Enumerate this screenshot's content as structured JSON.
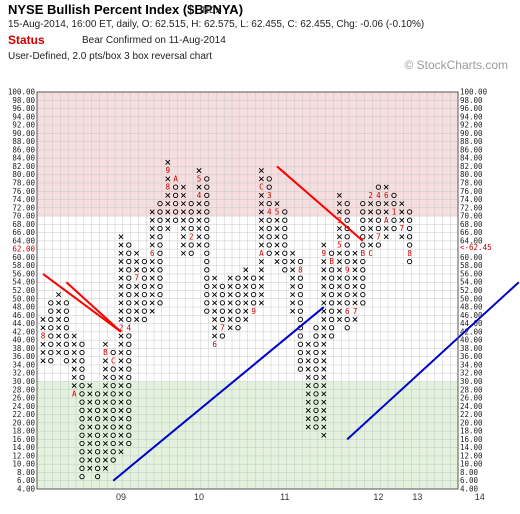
{
  "header": {
    "title": "NYSE Bullish Percent Index ($BPNYA)",
    "symbol_type": "INDX",
    "info": "15-Aug-2014, 16:00 ET, daily, O: 62.515, H: 62.575, L: 62.455, C: 62.455, Chg: -0.06 (-0.10%)",
    "status_label": "Status",
    "status_text": "Bear Confirmed on 11-Aug-2014",
    "description": "User-Defined, 2.0 pts/box 3 box reversal chart",
    "brand": "© StockCharts.com"
  },
  "colors": {
    "overbought_zone": "#f6dede",
    "oversold_zone": "#e2f2dc",
    "x_color": "#000000",
    "o_color": "#000000",
    "month_marker": "#cc0000",
    "resistance_line": "#ff0000",
    "support_line": "#0000cc",
    "current_price_label": "#cc0000"
  },
  "chart_data": {
    "type": "point-and-figure",
    "box_size": 2,
    "reversal": 3,
    "ylim": [
      4,
      100
    ],
    "y_ticks": [
      "4.00",
      "6.00",
      "8.00",
      "10.00",
      "12.00",
      "14.00",
      "16.00",
      "18.00",
      "20.00",
      "22.00",
      "24.00",
      "26.00",
      "28.00",
      "30.00",
      "32.00",
      "34.00",
      "36.00",
      "38.00",
      "40.00",
      "42.00",
      "44.00",
      "46.00",
      "48.00",
      "50.00",
      "52.00",
      "54.00",
      "56.00",
      "58.00",
      "60.00",
      "62.00",
      "64.00",
      "66.00",
      "68.00",
      "70.00",
      "72.00",
      "74.00",
      "76.00",
      "78.00",
      "80.00",
      "82.00",
      "84.00",
      "86.00",
      "88.00",
      "90.00",
      "92.00",
      "94.00",
      "96.00",
      "98.00",
      "100.00"
    ],
    "current_value_label": "62.00",
    "current_value_marker": "<-62.45",
    "zones": [
      {
        "name": "overbought",
        "from": 70,
        "to": 100
      },
      {
        "name": "oversold",
        "from": 4,
        "to": 30
      }
    ],
    "x_labels": [
      {
        "col": 10,
        "label": "09"
      },
      {
        "col": 20,
        "label": "10"
      },
      {
        "col": 31,
        "label": "11"
      },
      {
        "col": 43,
        "label": "12"
      },
      {
        "col": 48,
        "label": "13"
      },
      {
        "col": 56,
        "label": "14"
      }
    ],
    "columns": [
      {
        "type": "X",
        "low": 36,
        "high": 46,
        "marks": {
          "42": "8"
        }
      },
      {
        "type": "O",
        "low": 36,
        "high": 50
      },
      {
        "type": "X",
        "low": 38,
        "high": 52
      },
      {
        "type": "O",
        "low": 36,
        "high": 50
      },
      {
        "type": "X",
        "low": 28,
        "high": 42,
        "marks": {
          "28": "A"
        }
      },
      {
        "type": "O",
        "low": 8,
        "high": 40
      },
      {
        "type": "X",
        "low": 10,
        "high": 30
      },
      {
        "type": "O",
        "low": 8,
        "high": 28
      },
      {
        "type": "X",
        "low": 10,
        "high": 40,
        "marks": {
          "38": "B"
        }
      },
      {
        "type": "O",
        "low": 12,
        "high": 38,
        "marks": {
          "36": "C"
        }
      },
      {
        "type": "X",
        "low": 14,
        "high": 66,
        "marks": {
          "44": "2"
        }
      },
      {
        "type": "O",
        "low": 16,
        "high": 64,
        "marks": {
          "44": "4"
        }
      },
      {
        "type": "X",
        "low": 46,
        "high": 62,
        "marks": {
          "56": "7"
        }
      },
      {
        "type": "O",
        "low": 46,
        "high": 60
      },
      {
        "type": "X",
        "low": 48,
        "high": 72,
        "marks": {
          "62": "6"
        }
      },
      {
        "type": "O",
        "low": 50,
        "high": 74
      },
      {
        "type": "X",
        "low": 68,
        "high": 84,
        "marks": {
          "82": "9",
          "78": "8"
        }
      },
      {
        "type": "O",
        "low": 70,
        "high": 80,
        "marks": {
          "80": "A"
        }
      },
      {
        "type": "X",
        "low": 62,
        "high": 78
      },
      {
        "type": "O",
        "low": 62,
        "high": 74,
        "marks": {
          "66": "2"
        }
      },
      {
        "type": "X",
        "low": 64,
        "high": 82,
        "marks": {
          "80": "5",
          "76": "4"
        }
      },
      {
        "type": "O",
        "low": 48,
        "high": 80
      },
      {
        "type": "X",
        "low": 40,
        "high": 56,
        "marks": {
          "40": "6"
        }
      },
      {
        "type": "O",
        "low": 42,
        "high": 54,
        "marks": {
          "44": "7"
        }
      },
      {
        "type": "X",
        "low": 44,
        "high": 56
      },
      {
        "type": "O",
        "low": 44,
        "high": 56
      },
      {
        "type": "X",
        "low": 46,
        "high": 58
      },
      {
        "type": "O",
        "low": 48,
        "high": 56,
        "marks": {
          "48": "9"
        }
      },
      {
        "type": "X",
        "low": 50,
        "high": 82,
        "marks": {
          "62": "A",
          "78": "C"
        }
      },
      {
        "type": "O",
        "low": 62,
        "high": 80,
        "marks": {
          "76": "3",
          "72": "4"
        }
      },
      {
        "type": "X",
        "low": 60,
        "high": 74,
        "marks": {
          "72": "5"
        }
      },
      {
        "type": "O",
        "low": 58,
        "high": 72
      },
      {
        "type": "X",
        "low": 48,
        "high": 62
      },
      {
        "type": "O",
        "low": 34,
        "high": 60,
        "marks": {
          "58": "8"
        }
      },
      {
        "type": "X",
        "low": 20,
        "high": 40
      },
      {
        "type": "O",
        "low": 20,
        "high": 44
      },
      {
        "type": "X",
        "low": 18,
        "high": 64,
        "marks": {
          "62": "9"
        }
      },
      {
        "type": "O",
        "low": 42,
        "high": 62,
        "marks": {
          "60": "B"
        }
      },
      {
        "type": "X",
        "low": 46,
        "high": 76,
        "marks": {
          "64": "5",
          "70": "3"
        }
      },
      {
        "type": "O",
        "low": 44,
        "high": 74,
        "marks": {
          "48": "6",
          "58": "9"
        }
      },
      {
        "type": "X",
        "low": 46,
        "high": 62,
        "marks": {
          "48": "7"
        }
      },
      {
        "type": "O",
        "low": 50,
        "high": 74,
        "marks": {
          "62": "B"
        }
      },
      {
        "type": "X",
        "low": 62,
        "high": 76,
        "marks": {
          "76": "2",
          "62": "C"
        }
      },
      {
        "type": "O",
        "low": 64,
        "high": 78,
        "marks": {
          "76": "4",
          "66": "7"
        }
      },
      {
        "type": "X",
        "low": 66,
        "high": 78,
        "marks": {
          "76": "6",
          "70": "A"
        }
      },
      {
        "type": "O",
        "low": 68,
        "high": 76,
        "marks": {
          "72": "1"
        }
      },
      {
        "type": "X",
        "low": 66,
        "high": 74,
        "marks": {
          "68": "7"
        }
      },
      {
        "type": "O",
        "low": 60,
        "high": 72,
        "marks": {
          "62": "8"
        }
      }
    ],
    "trendlines": [
      {
        "type": "resistance",
        "from": {
          "col": 0,
          "y": 56
        },
        "to": {
          "col": 10,
          "y": 42
        }
      },
      {
        "type": "resistance",
        "from": {
          "col": 3,
          "y": 54
        },
        "to": {
          "col": 10,
          "y": 42
        }
      },
      {
        "type": "resistance",
        "from": {
          "col": 30,
          "y": 82
        },
        "to": {
          "col": 41,
          "y": 64
        }
      },
      {
        "type": "support",
        "from": {
          "col": 9,
          "y": 6
        },
        "to": {
          "col": 36,
          "y": 48
        }
      },
      {
        "type": "support",
        "from": {
          "col": 39,
          "y": 16
        },
        "to": {
          "col": 61,
          "y": 54
        }
      }
    ]
  }
}
